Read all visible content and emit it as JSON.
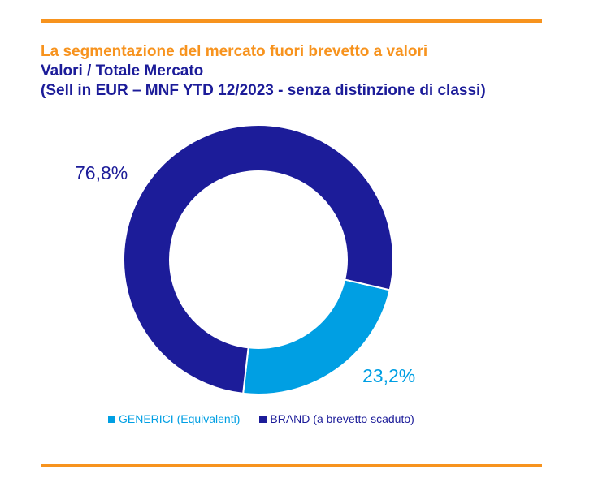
{
  "header": {
    "title": "La segmentazione del mercato fuori brevetto a valori",
    "subtitle": "Valori / Totale Mercato",
    "subtitle2": "(Sell in EUR – MNF YTD 12/2023 - senza distinzione di classi)"
  },
  "chart_data": {
    "type": "pie",
    "variant": "donut",
    "categories": [
      "GENERICI (Equivalenti)",
      "BRAND (a brevetto scaduto)"
    ],
    "values": [
      23.2,
      76.8
    ],
    "data_labels": [
      "23,2%",
      "76,8%"
    ],
    "colors": [
      "#009fe3",
      "#1c1c99"
    ],
    "legend_position": "bottom"
  },
  "legend": {
    "items": [
      {
        "label": "GENERICI (Equivalenti)",
        "color": "#009fe3"
      },
      {
        "label": "BRAND (a brevetto scaduto)",
        "color": "#1c1c99"
      }
    ]
  },
  "colors": {
    "accent": "#f7931e",
    "text_dark": "#1c1c99"
  }
}
